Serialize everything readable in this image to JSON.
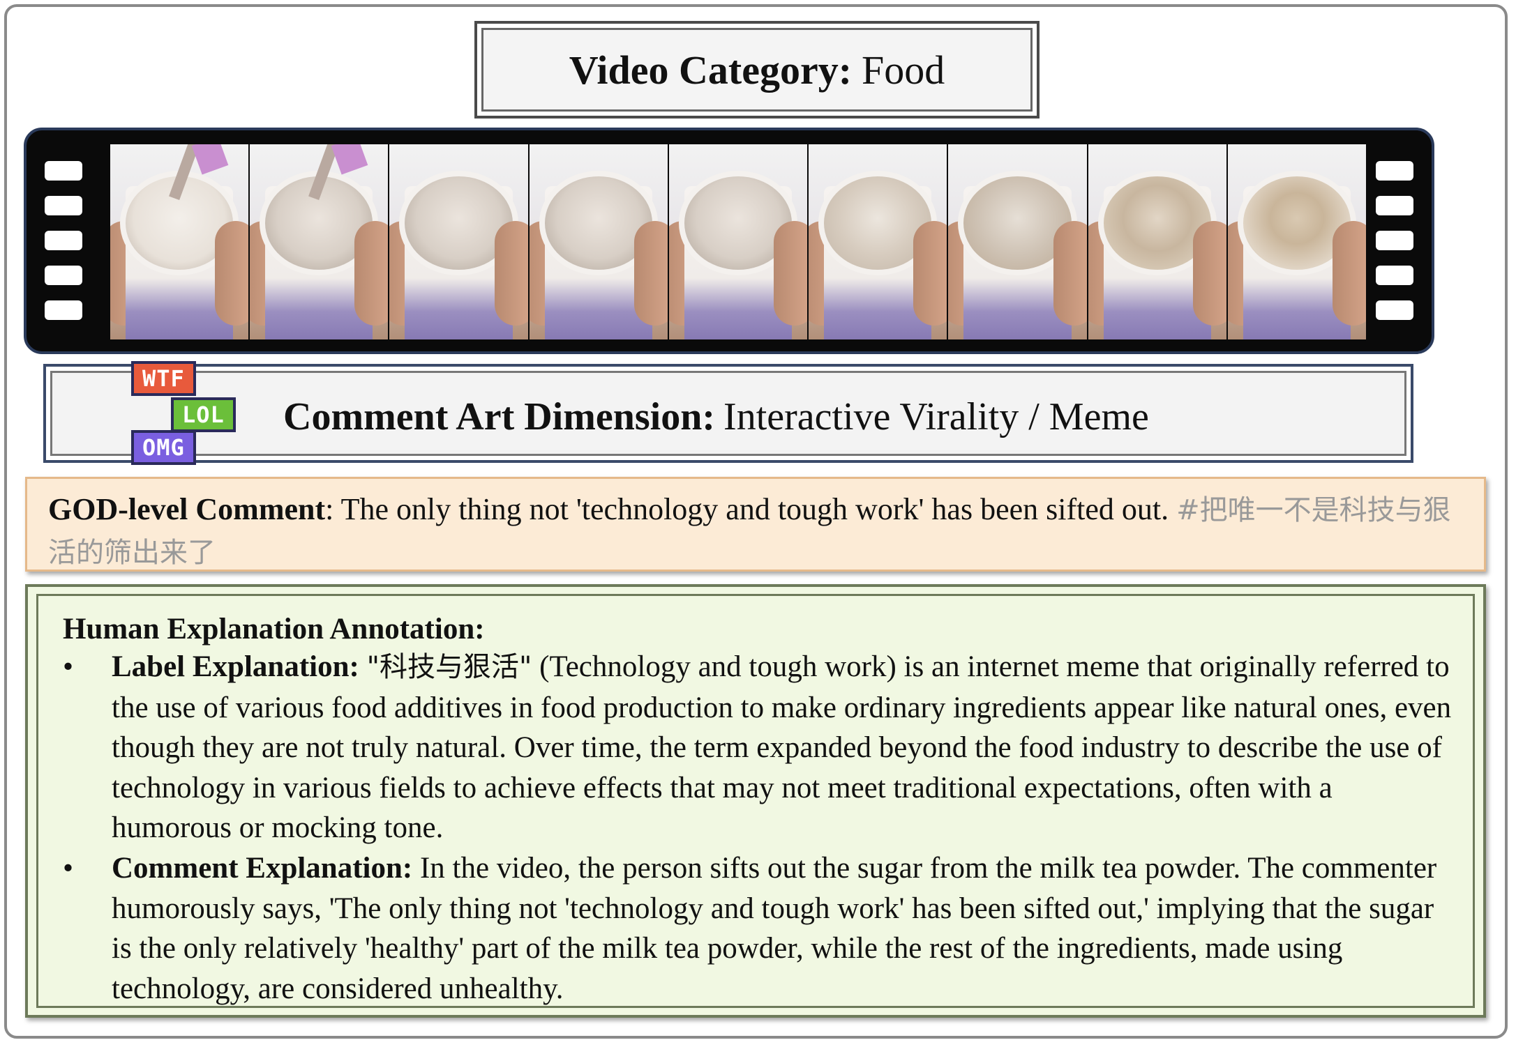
{
  "header": {
    "label": "Video Category:",
    "value": "Food"
  },
  "film_strip": {
    "frame_count": 9,
    "hole_count": 5,
    "description": ""
  },
  "dimension": {
    "label": "Comment Art Dimension:",
    "value": "Interactive Virality / Meme",
    "badges": [
      "WTF",
      "LOL",
      "OMG"
    ]
  },
  "god_comment": {
    "label": "GOD-level Comment",
    "sep": ": ",
    "text": "The only thing not 'technology and tough work' has been sifted out.",
    "chinese": "#把唯一不是科技与狠活的筛出来了"
  },
  "annotation": {
    "title": "Human Explanation Annotation:",
    "bullet": "•",
    "items": [
      {
        "label": "Label Explanation:",
        "zh_term": "\"科技与狠活\"",
        "text": " (Technology and tough work) is an internet meme that originally referred to the use of various food additives in food production to make ordinary ingredients appear like natural ones, even though they are not truly natural. Over time, the term expanded beyond the food industry to describe the use of technology in various fields to achieve effects that may not meet traditional expectations, often with a humorous or mocking tone."
      },
      {
        "label": "Comment Explanation:",
        "text": " In the video, the person sifts out the sugar from the milk tea powder. The commenter humorously says, 'The only thing not 'technology and tough work' has been sifted out,' implying that the sugar is the only relatively 'healthy' part of the milk tea powder, while the rest of the ingredients, made using technology, are considered unhealthy."
      }
    ]
  }
}
